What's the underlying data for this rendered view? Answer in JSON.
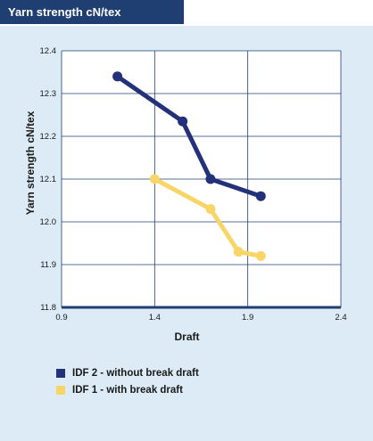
{
  "header": {
    "title": "Yarn strength cN/tex"
  },
  "colors": {
    "header_bg": "#1f3f73",
    "panel_bg": "#dcebf6",
    "series_1": "#23307a",
    "series_2": "#f8d567",
    "axis": "#1f3f73",
    "grid": "#1f3f73"
  },
  "chart_data": {
    "type": "line",
    "title": "",
    "xlabel": "Draft",
    "ylabel": "Yarn strength cN/tex",
    "xlim": [
      0.9,
      2.4
    ],
    "ylim": [
      11.8,
      12.4
    ],
    "x_ticks": [
      0.9,
      1.4,
      1.9,
      2.4
    ],
    "x_tick_labels": [
      "0.9",
      "1.4",
      "1.9",
      "2.4"
    ],
    "y_ticks": [
      11.8,
      11.9,
      12.0,
      12.1,
      12.2,
      12.3,
      12.4
    ],
    "y_tick_labels": [
      "11.8",
      "11.9",
      "12.0",
      "12.1",
      "12.2",
      "12.3",
      "12.4"
    ],
    "grid": true,
    "legend_position": "bottom",
    "series": [
      {
        "name": "IDF 2 - without break draft",
        "color": "#23307a",
        "points": [
          {
            "x": 1.2,
            "y": 12.34
          },
          {
            "x": 1.55,
            "y": 12.235
          },
          {
            "x": 1.7,
            "y": 12.1
          },
          {
            "x": 1.97,
            "y": 12.06
          }
        ]
      },
      {
        "name": "IDF 1 - with break draft",
        "color": "#f8d567",
        "points": [
          {
            "x": 1.4,
            "y": 12.1
          },
          {
            "x": 1.7,
            "y": 12.03
          },
          {
            "x": 1.85,
            "y": 11.93
          },
          {
            "x": 1.97,
            "y": 11.92
          }
        ]
      }
    ]
  },
  "legend": [
    {
      "label": "IDF 2 - without break draft",
      "color": "#23307a"
    },
    {
      "label": "IDF 1 - with break draft",
      "color": "#f8d567"
    }
  ]
}
